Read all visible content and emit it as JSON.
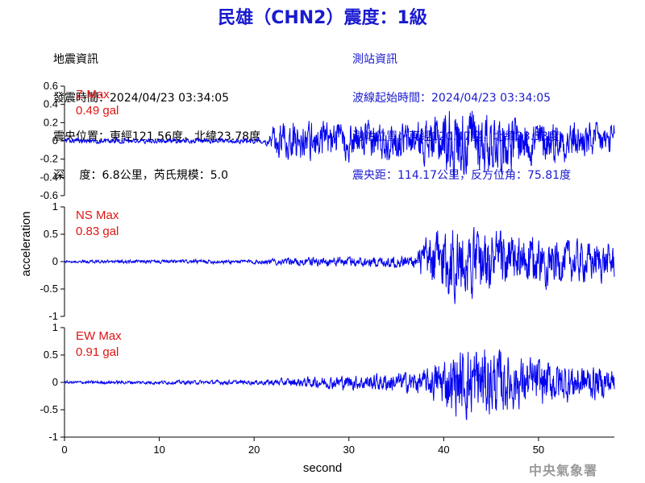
{
  "header": {
    "title": "民雄（CHN2）震度：1級",
    "earthquake_info": {
      "heading": "地震資訊",
      "origin_time": "發震時間：2024/04/23 03:34:05",
      "epicenter": "震央位置：東經121.56度，北緯23.78度",
      "depth_magnitude": "深　 度：6.8公里，芮氏規模：5.0"
    },
    "station_info": {
      "heading": "測站資訊",
      "wave_start": "波線起始時間：2024/04/23 03:34:05",
      "station_location": "測站位置：東經120.47度，北緯23.53度",
      "distance_azimuth": "震央距：114.17公里，反方位角：75.81度"
    }
  },
  "watermark": "中央氣象署",
  "colors": {
    "title": "#1a1ad0",
    "trace": "#0000ee",
    "panel_label": "#e01414"
  },
  "chart_data": {
    "type": "line",
    "xlabel": "second",
    "ylabel": "acceleration",
    "xlim": [
      0,
      58
    ],
    "xticks": [
      0,
      10,
      20,
      30,
      40,
      50
    ],
    "grid": false,
    "panels": [
      {
        "component": "Z",
        "label": "Z Max",
        "max_text": "0.49 gal",
        "peak": 0.49,
        "ylim": [
          -0.6,
          0.6
        ],
        "yticks": [
          -0.6,
          -0.4,
          -0.2,
          0,
          0.2,
          0.4,
          0.6
        ],
        "ytick_labels": [
          "-0.6",
          "-0.4",
          "-0.2",
          "0",
          "0.2",
          "0.4",
          "0.6"
        ],
        "envelope": [
          [
            0,
            0.02
          ],
          [
            21,
            0.02
          ],
          [
            22.5,
            0.14
          ],
          [
            24,
            0.16
          ],
          [
            30,
            0.15
          ],
          [
            37,
            0.15
          ],
          [
            39,
            0.2
          ],
          [
            41,
            0.3
          ],
          [
            45,
            0.25
          ],
          [
            50,
            0.18
          ],
          [
            58,
            0.13
          ]
        ]
      },
      {
        "component": "NS",
        "label": "NS Max",
        "max_text": "0.83 gal",
        "peak": 0.83,
        "ylim": [
          -1,
          1
        ],
        "yticks": [
          -1,
          -0.5,
          0,
          0.5,
          1
        ],
        "ytick_labels": [
          "-1",
          "-0.5",
          "0",
          "0.5",
          "1"
        ],
        "envelope": [
          [
            0,
            0.02
          ],
          [
            20,
            0.03
          ],
          [
            26,
            0.06
          ],
          [
            37,
            0.09
          ],
          [
            38,
            0.3
          ],
          [
            40,
            0.55
          ],
          [
            44,
            0.45
          ],
          [
            50,
            0.32
          ],
          [
            58,
            0.25
          ]
        ]
      },
      {
        "component": "EW",
        "label": "EW Max",
        "max_text": "0.91 gal",
        "peak": 0.91,
        "ylim": [
          -1,
          1
        ],
        "yticks": [
          -1,
          -0.5,
          0,
          0.5,
          1
        ],
        "ytick_labels": [
          "-1",
          "-0.5",
          "0",
          "0.5",
          "1"
        ],
        "envelope": [
          [
            0,
            0.02
          ],
          [
            20,
            0.03
          ],
          [
            27,
            0.08
          ],
          [
            33,
            0.12
          ],
          [
            38,
            0.16
          ],
          [
            40,
            0.35
          ],
          [
            43,
            0.55
          ],
          [
            48,
            0.35
          ],
          [
            58,
            0.2
          ]
        ]
      }
    ]
  }
}
